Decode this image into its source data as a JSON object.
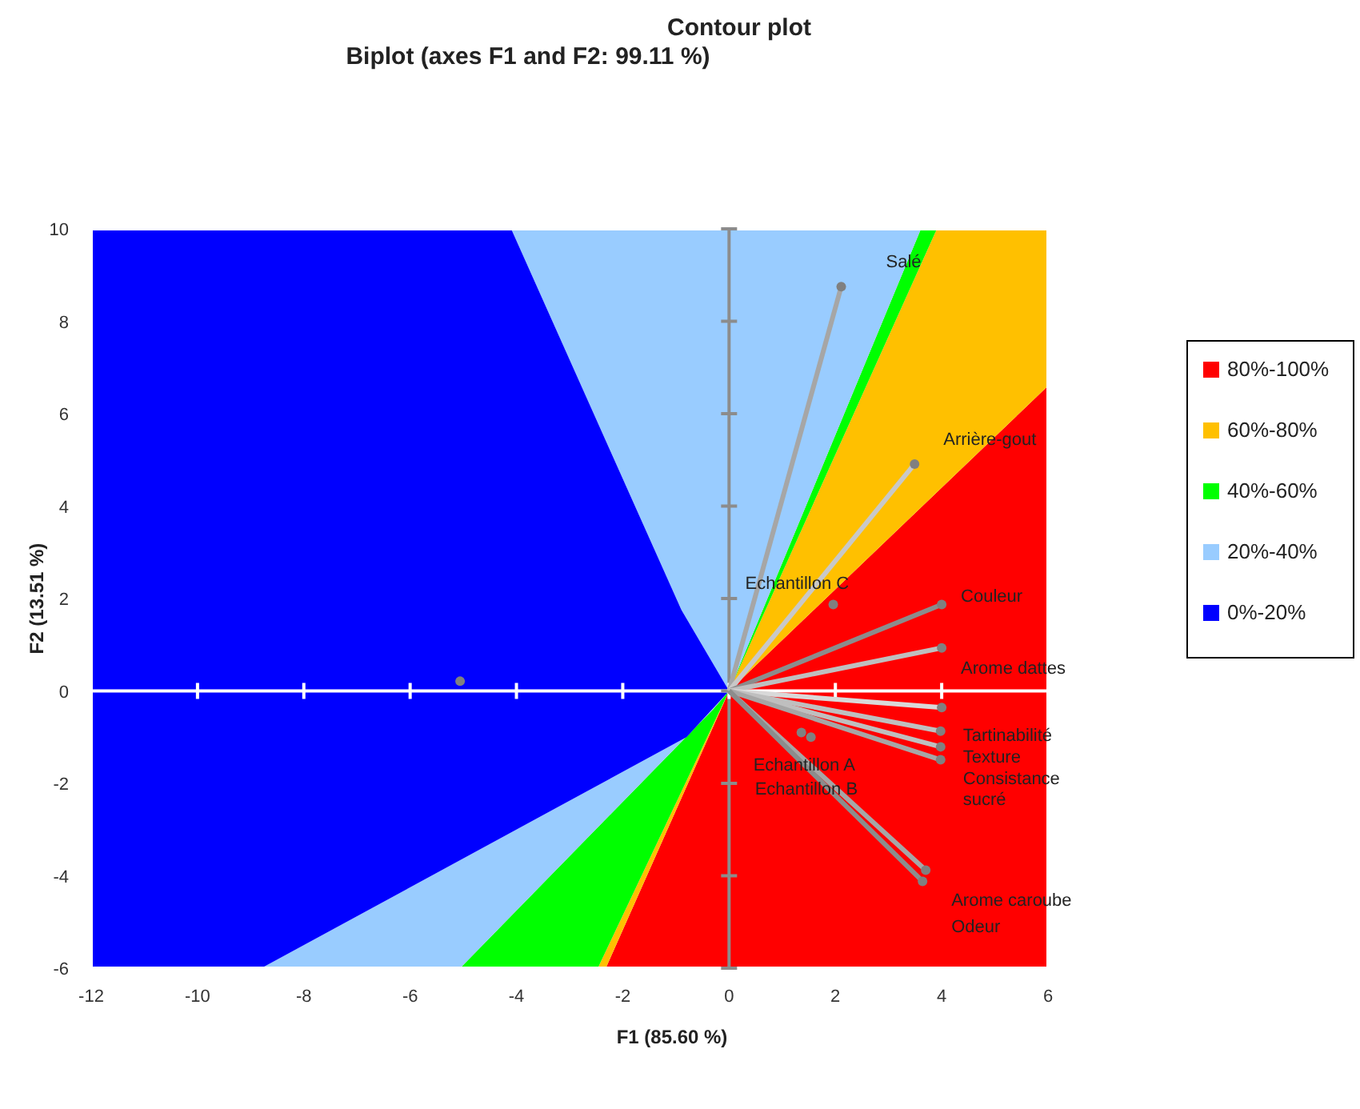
{
  "chart_data": {
    "type": "scatter",
    "title": "Contour plot",
    "subtitle": "Biplot (axes F1 and F2: 99.11 %)",
    "xlabel": "F1 (85.60 %)",
    "ylabel": "F2 (13.51 %)",
    "xlim": [
      -12,
      6
    ],
    "ylim": [
      -6,
      10
    ],
    "xticks": [
      -12,
      -10,
      -8,
      -6,
      -4,
      -2,
      0,
      2,
      4,
      6
    ],
    "yticks": [
      -6,
      -4,
      -2,
      0,
      2,
      4,
      6,
      8,
      10
    ],
    "legend": "right",
    "ref_lines": [
      {
        "axis": "y",
        "value": 0,
        "color": "#ffffff"
      },
      {
        "axis": "x",
        "value": 0,
        "color": "#8c8c8c"
      }
    ],
    "series": [
      {
        "type": "area",
        "name": "80%-100%",
        "color": "#ff0000",
        "x": [
          0,
          6,
          6,
          -2.32,
          0
        ],
        "values": [
          0,
          6.6,
          -6,
          -6,
          0
        ]
      },
      {
        "type": "area",
        "name": "60%-80%",
        "color": "#ffc000",
        "x": [
          0,
          -2.32,
          -2.47,
          0,
          null,
          0,
          3.91,
          6,
          6,
          0
        ],
        "values": [
          0,
          -6,
          -6,
          0,
          null,
          0,
          10,
          10,
          6.6,
          0
        ]
      },
      {
        "type": "area",
        "name": "40%-60%",
        "color": "#00ff00",
        "x": [
          0,
          -2.47,
          -5.06,
          -0.3,
          0,
          null,
          0,
          3.61,
          3.91,
          0
        ],
        "values": [
          0,
          -6,
          -6,
          -0.4,
          0,
          null,
          0,
          10,
          10,
          0
        ]
      },
      {
        "type": "area",
        "name": "20%-40%",
        "color": "#99ccff",
        "x": [
          0,
          -0.3,
          -5.06,
          -8.8,
          -0.8,
          0,
          null,
          0,
          -0.9,
          -4.1,
          3.61,
          0
        ],
        "values": [
          0,
          -0.4,
          -6,
          -6,
          -1,
          0,
          null,
          0,
          1.76,
          10,
          10,
          0
        ]
      },
      {
        "type": "area",
        "name": "0%-20%",
        "color": "#0000ff",
        "x": [
          0,
          -0.8,
          -8.8,
          -12,
          -12,
          -4.1,
          -0.9,
          0
        ],
        "values": [
          0,
          -1,
          -6,
          -6,
          10,
          10,
          1.76,
          0
        ]
      },
      {
        "type": "line",
        "color": "#a6a6a6",
        "x": [
          0,
          2.11
        ],
        "values": [
          0,
          8.75
        ]
      },
      {
        "type": "line",
        "color": "#c8c8c8",
        "x": [
          0,
          3.49
        ],
        "values": [
          0,
          4.91
        ]
      },
      {
        "type": "line",
        "color": "#8c8c8c",
        "x": [
          0,
          4.0
        ],
        "values": [
          0,
          1.87
        ]
      },
      {
        "type": "line",
        "color": "#bfbfbf",
        "x": [
          0,
          4.0
        ],
        "values": [
          0,
          0.93
        ]
      },
      {
        "type": "line",
        "color": "#d9d9d9",
        "x": [
          0,
          4.0
        ],
        "values": [
          0,
          -0.36
        ]
      },
      {
        "type": "line",
        "color": "#bfbfbf",
        "x": [
          0,
          3.98
        ],
        "values": [
          0,
          -0.87
        ]
      },
      {
        "type": "line",
        "color": "#bfbfbf",
        "x": [
          0,
          3.98
        ],
        "values": [
          0,
          -1.21
        ]
      },
      {
        "type": "line",
        "color": "#a6a6a6",
        "x": [
          0,
          3.98
        ],
        "values": [
          0,
          -1.49
        ]
      },
      {
        "type": "line",
        "color": "#a6a6a6",
        "x": [
          0,
          3.7
        ],
        "values": [
          0,
          -3.88
        ]
      },
      {
        "type": "line",
        "color": "#8c8c8c",
        "x": [
          0,
          3.64
        ],
        "values": [
          0,
          -4.12
        ]
      },
      {
        "color": "#808080",
        "marker": "circle",
        "x": [
          2.11,
          3.49,
          4.0,
          4.0,
          4.0,
          3.98,
          3.98,
          3.98,
          3.7,
          3.64
        ],
        "values": [
          8.75,
          4.91,
          1.87,
          0.93,
          -0.36,
          -0.87,
          -1.21,
          -1.49,
          -3.88,
          -4.12
        ]
      },
      {
        "color": "#808080",
        "marker": "circle",
        "x": [
          1.96,
          1.36,
          1.54,
          -5.06
        ],
        "values": [
          1.87,
          -0.9,
          -1.0,
          0.21
        ]
      }
    ],
    "annotations": [
      {
        "text": "Salé",
        "x": 2.11,
        "y": 8.75
      },
      {
        "text": "Arrière-gout",
        "x": 3.49,
        "y": 4.91
      },
      {
        "text": "Echantillon C",
        "x": 1.96,
        "y": 1.87
      },
      {
        "text": "Couleur",
        "x": 4.0,
        "y": 1.87
      },
      {
        "text": "Arome dattes",
        "x": 4.0,
        "y": 0.93
      },
      {
        "text": "Tartinabilité",
        "x": 3.98,
        "y": -0.87
      },
      {
        "text": "Texture",
        "x": 3.98,
        "y": -1.21
      },
      {
        "text": "Consistance",
        "x": 3.98,
        "y": -1.49
      },
      {
        "text": "sucré",
        "x": 3.98,
        "y": -1.49
      },
      {
        "text": "Echantillon A",
        "x": 1.36,
        "y": -0.9
      },
      {
        "text": "Echantillon B",
        "x": 1.54,
        "y": -1.0
      },
      {
        "text": "Arome caroube",
        "x": 3.7,
        "y": -3.88
      },
      {
        "text": "Odeur",
        "x": 3.64,
        "y": -4.12
      }
    ]
  }
}
